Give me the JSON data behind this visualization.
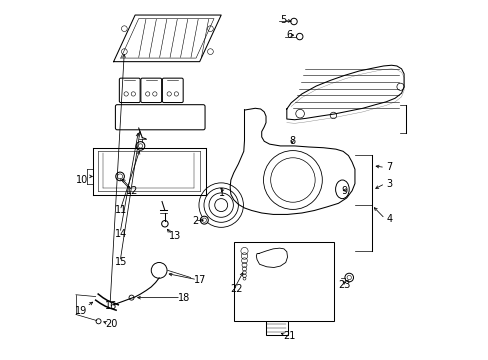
{
  "bg_color": "#ffffff",
  "line_color": "#000000",
  "figsize": [
    4.89,
    3.6
  ],
  "dpi": 100,
  "lw": 0.75,
  "label_fs": 7.0,
  "labels": {
    "1": [
      0.43,
      0.465,
      "left"
    ],
    "2": [
      0.355,
      0.385,
      "left"
    ],
    "3": [
      0.895,
      0.49,
      "left"
    ],
    "4": [
      0.895,
      0.39,
      "left"
    ],
    "5": [
      0.6,
      0.945,
      "left"
    ],
    "6": [
      0.617,
      0.905,
      "left"
    ],
    "7": [
      0.895,
      0.535,
      "left"
    ],
    "8": [
      0.633,
      0.61,
      "center"
    ],
    "9": [
      0.788,
      0.47,
      "right"
    ],
    "10": [
      0.03,
      0.5,
      "left"
    ],
    "11": [
      0.14,
      0.415,
      "left"
    ],
    "12": [
      0.17,
      0.47,
      "left"
    ],
    "13": [
      0.29,
      0.345,
      "left"
    ],
    "14": [
      0.14,
      0.35,
      "left"
    ],
    "15": [
      0.14,
      0.27,
      "left"
    ],
    "16": [
      0.112,
      0.148,
      "left"
    ],
    "17": [
      0.36,
      0.22,
      "left"
    ],
    "18": [
      0.315,
      0.17,
      "left"
    ],
    "19": [
      0.028,
      0.135,
      "left"
    ],
    "20": [
      0.112,
      0.098,
      "left"
    ],
    "21": [
      0.607,
      0.065,
      "left"
    ],
    "22": [
      0.46,
      0.195,
      "left"
    ],
    "23": [
      0.762,
      0.208,
      "left"
    ]
  }
}
